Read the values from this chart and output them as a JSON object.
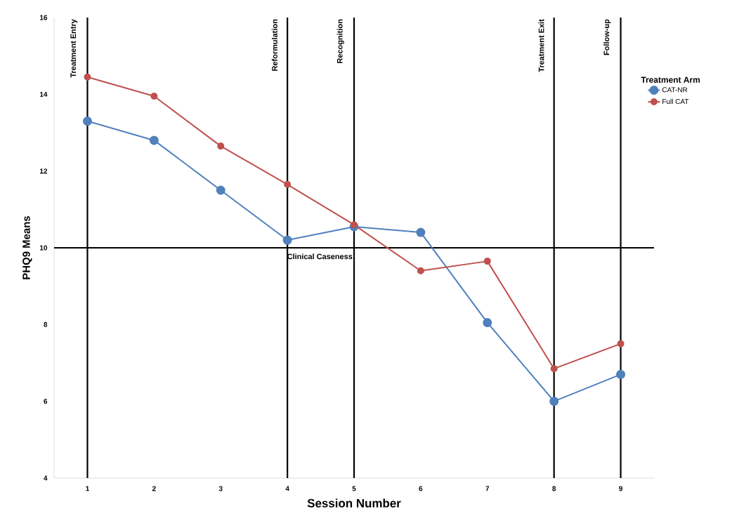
{
  "chart_data": {
    "type": "line",
    "xlabel": "Session Number",
    "ylabel": "PHQ9 Means",
    "legend_title": "Treatment Arm",
    "legend": "right",
    "marker": "circle",
    "line_style": "solid",
    "x": [
      1,
      2,
      3,
      4,
      5,
      6,
      7,
      8,
      9
    ],
    "series": [
      {
        "name": "CAT-NR",
        "color": "#4f81bd",
        "values": [
          13.3,
          12.8,
          11.5,
          10.2,
          10.55,
          10.4,
          8.05,
          6.0,
          6.7
        ]
      },
      {
        "name": "Full CAT",
        "color": "#c0504d",
        "values": [
          14.45,
          13.95,
          12.65,
          11.65,
          10.6,
          9.4,
          9.65,
          6.85,
          7.5
        ]
      }
    ],
    "xlim": [
      0.5,
      9.5
    ],
    "ylim": [
      4,
      16
    ],
    "xticks": [
      1,
      2,
      3,
      4,
      5,
      6,
      7,
      8,
      9
    ],
    "yticks": [
      4,
      6,
      8,
      10,
      12,
      14,
      16
    ],
    "ref_lines": [
      {
        "axis": "x",
        "value": 1,
        "label": "Treatment Entry"
      },
      {
        "axis": "x",
        "value": 4,
        "label": "Reformulation"
      },
      {
        "axis": "x",
        "value": 5,
        "label": "Recognition"
      },
      {
        "axis": "x",
        "value": 8,
        "label": "Treatment Exit"
      },
      {
        "axis": "x",
        "value": 9,
        "label": "Follow-up"
      },
      {
        "axis": "y",
        "value": 10,
        "label": "Clinical Caseness"
      }
    ]
  }
}
